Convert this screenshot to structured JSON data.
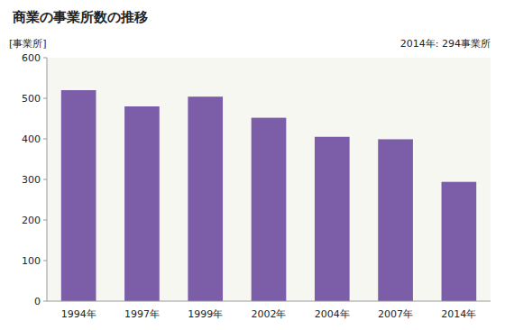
{
  "chart_data": {
    "type": "bar",
    "title": "商業の事業所数の推移",
    "ylabel": "[事業所]",
    "annotation": "2014年: 294事業所",
    "categories": [
      "1994年",
      "1997年",
      "1999年",
      "2002年",
      "2004年",
      "2007年",
      "2014年"
    ],
    "values": [
      520,
      480,
      504,
      452,
      405,
      399,
      294
    ],
    "color": "#7B5EA7",
    "ylim": [
      0,
      600
    ],
    "yticks": [
      0,
      100,
      200,
      300,
      400,
      500,
      600
    ],
    "grid": false
  }
}
